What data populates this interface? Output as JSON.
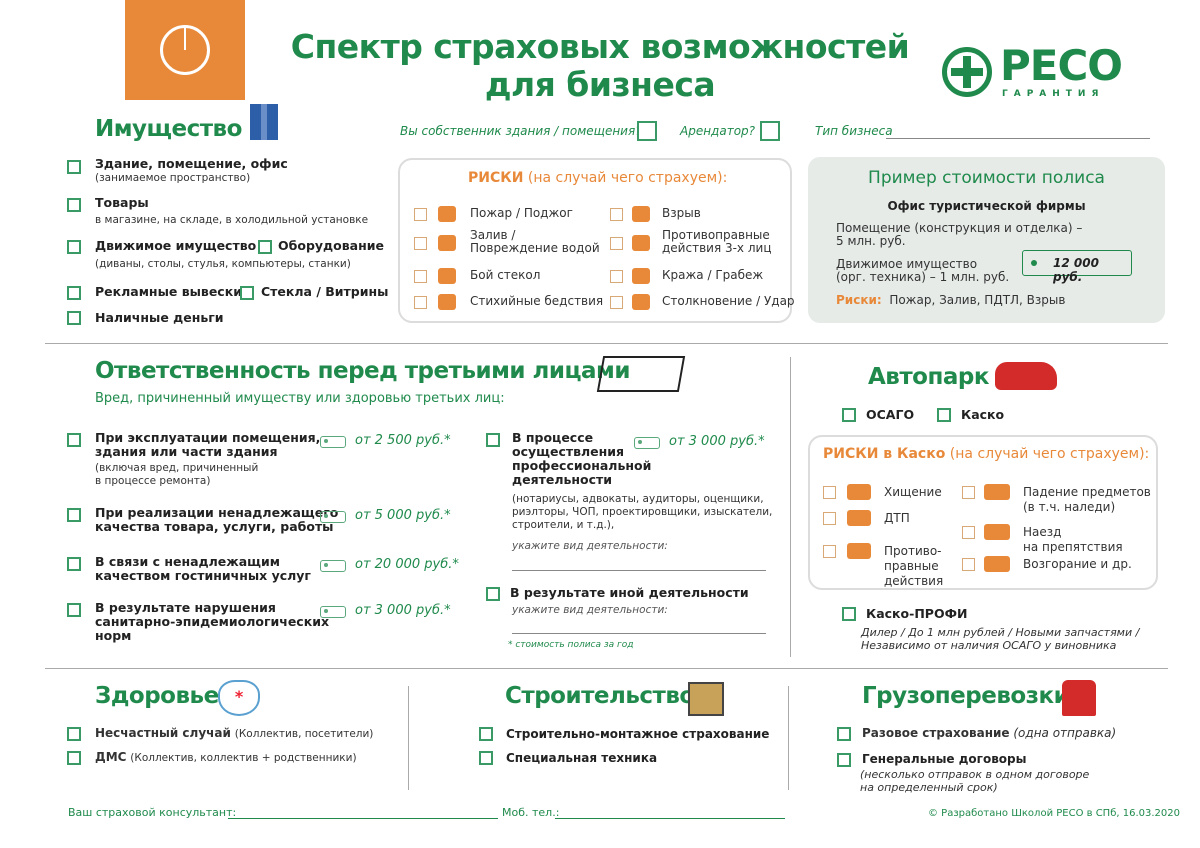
{
  "header": {
    "title_line1": "Спектр страховых возможностей",
    "title_line2": "для бизнеса",
    "logo_main": "РЕСО",
    "logo_sub": "ГАРАНТИЯ"
  },
  "colors": {
    "green": "#1f8a4c",
    "orange": "#e8893a",
    "panel": "#e6ebe8"
  },
  "property": {
    "title": "Имущество",
    "owner_q": "Вы собственник здания / помещения?",
    "tenant_q": "Арендатор?",
    "business_type": "Тип бизнеса",
    "items": [
      {
        "label": "Здание, помещение, офис",
        "note": "(занимаемое пространство)"
      },
      {
        "label": "Товары",
        "note": "в магазине, на складе, в холодильной установке"
      },
      {
        "label": "Движимое имущество",
        "extra": "Оборудование",
        "note": "(диваны, столы, стулья, компьютеры, станки)"
      },
      {
        "label": "Рекламные вывески",
        "extra": "Стекла / Витрины"
      },
      {
        "label": "Наличные деньги"
      }
    ],
    "risks": {
      "title_bold": "РИСКИ",
      "title_rest": "(на случай чего страхуем):",
      "left": [
        {
          "label": "Пожар / Поджог",
          "icon": "fire-icon"
        },
        {
          "label": "Залив /\nПовреждение водой",
          "icon": "faucet-icon"
        },
        {
          "label": "Бой стекол",
          "icon": "window-icon"
        },
        {
          "label": "Стихийные бедствия",
          "icon": "tornado-icon"
        }
      ],
      "right": [
        {
          "label": "Взрыв",
          "icon": "explosion-icon"
        },
        {
          "label": "Противоправные\nдействия 3-х лиц",
          "icon": "people-icon"
        },
        {
          "label": "Кража / Грабеж",
          "icon": "gun-icon"
        },
        {
          "label": "Столкновение / Удар",
          "icon": "impact-icon"
        }
      ]
    },
    "example": {
      "title": "Пример стоимости полиса",
      "subtitle": "Офис туристической фирмы",
      "line1": "Помещение (конструкция и отделка) –\n5 млн. руб.",
      "line2": "Движимое имущество\n(орг. техника) – 1 млн. руб.",
      "price": "12 000 руб.",
      "risks_label": "Риски:",
      "risks": "Пожар, Залив, ПДТЛ, Взрыв"
    }
  },
  "liability": {
    "title": "Ответственность перед третьими лицами",
    "subtitle": "Вред, причиненный имуществу или здоровью третьих лиц:",
    "items": [
      {
        "label": "При эксплуатации помещения,\nздания или части здания",
        "note": "(включая вред, причиненный\nв процессе ремонта)",
        "price": "от  2 500 руб.*"
      },
      {
        "label": "При реализации ненадлежащего\nкачества товара, услуги, работы",
        "price": "от 5 000 руб.*"
      },
      {
        "label": "В связи с ненадлежащим\nкачеством гостиничных услуг",
        "price": "от 20 000 руб.*"
      },
      {
        "label": "В результате нарушения\nсанитарно-эпидемиологических\nнорм",
        "price": "от 3 000 руб.*"
      }
    ],
    "prof": {
      "label": "В процессе\nосуществления\nпрофессиональной\nдеятельности",
      "price": "от 3 000 руб.*",
      "note": "(нотариусы, адвокаты, аудиторы, оценщики,\nриэлторы, ЧОП, проектировщики, изыскатели,\nстроители, и т.д.),",
      "specify": "укажите вид деятельности:"
    },
    "other": {
      "label": "В результате иной деятельности",
      "specify": "укажите вид деятельности:"
    },
    "footnote": "*   стоимость полиса за год"
  },
  "auto": {
    "title": "Автопарк",
    "osago": "ОСАГО",
    "kasko": "Каско",
    "risks_bold": "РИСКИ в Каско",
    "risks_rest": "(на случай чего страхуем):",
    "left": [
      {
        "label": "Хищение"
      },
      {
        "label": "ДТП"
      },
      {
        "label": "Противо-\nправные\nдействия"
      }
    ],
    "right": [
      {
        "label": "Падение предметов\n(в т.ч. наледи)"
      },
      {
        "label": "Наезд\nна препятствия"
      },
      {
        "label": "Возгорание и др."
      }
    ],
    "profi": "Каско-ПРОФИ",
    "profi_note": "Дилер / До 1 млн рублей / Новыми запчастями /\nНезависимо от наличия ОСАГО у виновника"
  },
  "health": {
    "title": "Здоровье",
    "items": [
      {
        "label": "Несчастный случай",
        "note": "(Коллектив, посетители)"
      },
      {
        "label": "ДМС",
        "note": "(Коллектив, коллектив + родственники)"
      }
    ]
  },
  "construction": {
    "title": "Строительство",
    "items": [
      {
        "label": "Строительно-монтажное страхование"
      },
      {
        "label": "Специальная техника"
      }
    ]
  },
  "cargo": {
    "title": "Грузоперевозки",
    "items": [
      {
        "label": "Разовое страхование",
        "note": "(одна отправка)"
      },
      {
        "label": "Генеральные договоры",
        "note": "(несколько отправок в одном договоре\nна определенный срок)"
      }
    ]
  },
  "footer": {
    "consultant": "Ваш страховой консультант:",
    "phone": "Моб. тел.:",
    "credit": "© Разработано Школой РЕСО в СПб, 16.03.2020"
  }
}
